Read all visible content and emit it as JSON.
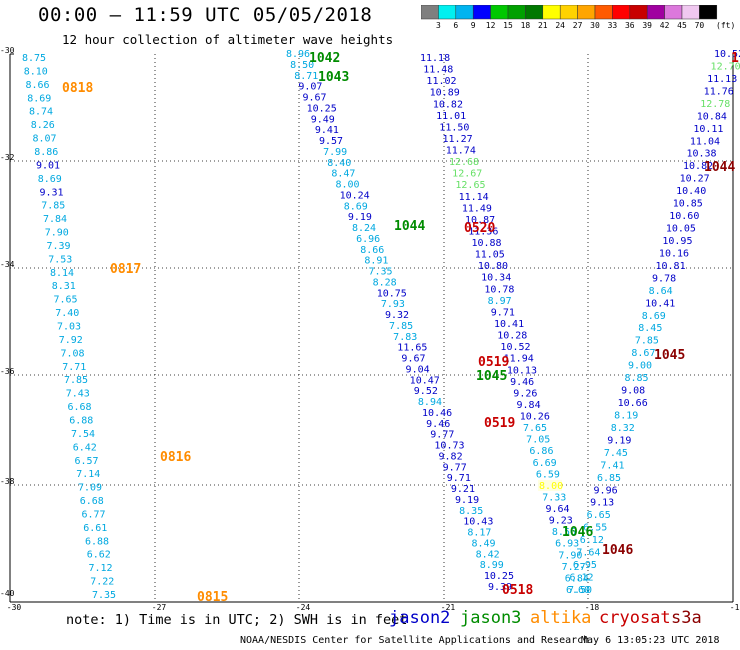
{
  "title": "00:00 – 11:59 UTC 05/05/2018",
  "subtitle": "12 hour collection of altimeter wave heights",
  "scale": {
    "unit": "(ft)",
    "bins": [
      {
        "label": "3",
        "color": "#7f7f7f"
      },
      {
        "label": "6",
        "color": "#00f0f0"
      },
      {
        "label": "9",
        "color": "#00b4f0"
      },
      {
        "label": "12",
        "color": "#0000ff"
      },
      {
        "label": "15",
        "color": "#00c800"
      },
      {
        "label": "18",
        "color": "#00a000"
      },
      {
        "label": "21",
        "color": "#007800"
      },
      {
        "label": "24",
        "color": "#ffff00"
      },
      {
        "label": "27",
        "color": "#ffd200"
      },
      {
        "label": "30",
        "color": "#ffa500"
      },
      {
        "label": "33",
        "color": "#ff5a00"
      },
      {
        "label": "36",
        "color": "#ff0000"
      },
      {
        "label": "39",
        "color": "#c80000"
      },
      {
        "label": "42",
        "color": "#a000a0"
      },
      {
        "label": "45",
        "color": "#dc78dc"
      },
      {
        "label": "70",
        "color": "#f0c8f0"
      },
      {
        "label": "",
        "color": "#000000"
      }
    ]
  },
  "map": {
    "lat_labels": [
      "-30",
      "-32",
      "-34",
      "-36",
      "-38",
      "-40"
    ],
    "lon_labels": [
      "-30",
      "-27",
      "-24",
      "-21",
      "-18",
      "-15"
    ]
  },
  "colors": {
    "jason2": "#0000c8",
    "jason3": "#008c00",
    "altika": "#ff8c00",
    "cryosat": "#c80000",
    "s3a": "#8b0000",
    "cyan": "#00a8e0",
    "lightgreen": "#66e066",
    "yellow": "#ffff00"
  },
  "tracks": [
    {
      "id": "altika",
      "color": "cyan",
      "points": [
        {
          "v": "8.75",
          "c": "cyan"
        },
        {
          "v": "8.10",
          "c": "cyan"
        },
        {
          "v": "8.66",
          "c": "cyan"
        },
        {
          "v": "8.69",
          "c": "cyan"
        },
        {
          "v": "8.74",
          "c": "cyan"
        },
        {
          "v": "8.26",
          "c": "cyan"
        },
        {
          "v": "8.07",
          "c": "cyan"
        },
        {
          "v": "8.86",
          "c": "cyan"
        },
        {
          "v": "9.01",
          "c": "jason2"
        },
        {
          "v": "8.69",
          "c": "cyan"
        },
        {
          "v": "9.31",
          "c": "jason2"
        },
        {
          "v": "7.85",
          "c": "cyan"
        },
        {
          "v": "7.84",
          "c": "cyan"
        },
        {
          "v": "7.90",
          "c": "cyan"
        },
        {
          "v": "7.39",
          "c": "cyan"
        },
        {
          "v": "7.53",
          "c": "cyan"
        },
        {
          "v": "8.14",
          "c": "cyan"
        },
        {
          "v": "8.31",
          "c": "cyan"
        },
        {
          "v": "7.65",
          "c": "cyan"
        },
        {
          "v": "7.40",
          "c": "cyan"
        },
        {
          "v": "7.03",
          "c": "cyan"
        },
        {
          "v": "7.92",
          "c": "cyan"
        },
        {
          "v": "7.08",
          "c": "cyan"
        },
        {
          "v": "7.71",
          "c": "cyan"
        },
        {
          "v": "7.85",
          "c": "cyan"
        },
        {
          "v": "7.43",
          "c": "cyan"
        },
        {
          "v": "6.68",
          "c": "cyan"
        },
        {
          "v": "6.88",
          "c": "cyan"
        },
        {
          "v": "7.54",
          "c": "cyan"
        },
        {
          "v": "6.42",
          "c": "cyan"
        },
        {
          "v": "6.57",
          "c": "cyan"
        },
        {
          "v": "7.14",
          "c": "cyan"
        },
        {
          "v": "7.09",
          "c": "cyan"
        },
        {
          "v": "6.68",
          "c": "cyan"
        },
        {
          "v": "6.77",
          "c": "cyan"
        },
        {
          "v": "6.61",
          "c": "cyan"
        },
        {
          "v": "6.88",
          "c": "cyan"
        },
        {
          "v": "6.62",
          "c": "cyan"
        },
        {
          "v": "7.12",
          "c": "cyan"
        },
        {
          "v": "7.22",
          "c": "cyan"
        },
        {
          "v": "7.35",
          "c": "cyan"
        }
      ]
    },
    {
      "id": "jason3-1042",
      "color": "cyan",
      "points": [
        {
          "v": "8.96",
          "c": "cyan"
        },
        {
          "v": "8.50",
          "c": "cyan"
        },
        {
          "v": "8.71",
          "c": "cyan"
        },
        {
          "v": "9.07",
          "c": "jason2"
        },
        {
          "v": "9.67",
          "c": "jason2"
        },
        {
          "v": "10.25",
          "c": "jason2"
        },
        {
          "v": "9.49",
          "c": "jason2"
        },
        {
          "v": "9.41",
          "c": "jason2"
        },
        {
          "v": "9.57",
          "c": "jason2"
        },
        {
          "v": "7.99",
          "c": "cyan"
        },
        {
          "v": "8.40",
          "c": "cyan"
        },
        {
          "v": "8.47",
          "c": "cyan"
        },
        {
          "v": "8.00",
          "c": "cyan"
        },
        {
          "v": "10.24",
          "c": "jason2"
        },
        {
          "v": "8.69",
          "c": "cyan"
        },
        {
          "v": "9.19",
          "c": "jason2"
        },
        {
          "v": "8.24",
          "c": "cyan"
        },
        {
          "v": "6.96",
          "c": "cyan"
        },
        {
          "v": "8.66",
          "c": "cyan"
        },
        {
          "v": "8.91",
          "c": "cyan"
        },
        {
          "v": "7.35",
          "c": "cyan"
        },
        {
          "v": "8.28",
          "c": "cyan"
        },
        {
          "v": "10.75",
          "c": "jason2"
        },
        {
          "v": "7.93",
          "c": "cyan"
        },
        {
          "v": "9.32",
          "c": "jason2"
        },
        {
          "v": "7.85",
          "c": "cyan"
        },
        {
          "v": "7.83",
          "c": "cyan"
        },
        {
          "v": "11.65",
          "c": "jason2"
        },
        {
          "v": "9.67",
          "c": "jason2"
        },
        {
          "v": "9.04",
          "c": "jason2"
        },
        {
          "v": "10.47",
          "c": "jason2"
        },
        {
          "v": "9.52",
          "c": "jason2"
        },
        {
          "v": "8.94",
          "c": "cyan"
        },
        {
          "v": "10.46",
          "c": "jason2"
        },
        {
          "v": "9.46",
          "c": "jason2"
        },
        {
          "v": "9.77",
          "c": "jason2"
        },
        {
          "v": "10.73",
          "c": "jason2"
        },
        {
          "v": "9.82",
          "c": "jason2"
        },
        {
          "v": "9.77",
          "c": "jason2"
        },
        {
          "v": "9.71",
          "c": "jason2"
        },
        {
          "v": "9.21",
          "c": "jason2"
        },
        {
          "v": "9.19",
          "c": "jason2"
        },
        {
          "v": "8.35",
          "c": "cyan"
        },
        {
          "v": "10.43",
          "c": "jason2"
        },
        {
          "v": "8.17",
          "c": "cyan"
        },
        {
          "v": "8.49",
          "c": "cyan"
        },
        {
          "v": "8.42",
          "c": "cyan"
        },
        {
          "v": "8.99",
          "c": "cyan"
        },
        {
          "v": "10.25",
          "c": "jason2"
        },
        {
          "v": "9.39",
          "c": "jason2"
        }
      ]
    },
    {
      "id": "jason2-0520",
      "color": "jason2",
      "points": [
        {
          "v": "11.18",
          "c": "jason2"
        },
        {
          "v": "11.48",
          "c": "jason2"
        },
        {
          "v": "11.02",
          "c": "jason2"
        },
        {
          "v": "10.89",
          "c": "jason2"
        },
        {
          "v": "10.82",
          "c": "jason2"
        },
        {
          "v": "11.01",
          "c": "jason2"
        },
        {
          "v": "11.50",
          "c": "jason2"
        },
        {
          "v": "11.27",
          "c": "jason2"
        },
        {
          "v": "11.74",
          "c": "jason2"
        },
        {
          "v": "12.68",
          "c": "lightgreen"
        },
        {
          "v": "12.67",
          "c": "lightgreen"
        },
        {
          "v": "12.65",
          "c": "lightgreen"
        },
        {
          "v": "11.14",
          "c": "jason2"
        },
        {
          "v": "11.49",
          "c": "jason2"
        },
        {
          "v": "10.87",
          "c": "jason2"
        },
        {
          "v": "11.36",
          "c": "jason2"
        },
        {
          "v": "10.88",
          "c": "jason2"
        },
        {
          "v": "11.05",
          "c": "jason2"
        },
        {
          "v": "10.80",
          "c": "jason2"
        },
        {
          "v": "10.34",
          "c": "jason2"
        },
        {
          "v": "10.78",
          "c": "jason2"
        },
        {
          "v": "8.97",
          "c": "cyan"
        },
        {
          "v": "9.71",
          "c": "jason2"
        },
        {
          "v": "10.41",
          "c": "jason2"
        },
        {
          "v": "10.28",
          "c": "jason2"
        },
        {
          "v": "10.52",
          "c": "jason2"
        },
        {
          "v": "11.94",
          "c": "jason2"
        },
        {
          "v": "10.13",
          "c": "jason2"
        },
        {
          "v": "9.46",
          "c": "jason2"
        },
        {
          "v": "9.26",
          "c": "jason2"
        },
        {
          "v": "9.84",
          "c": "jason2"
        },
        {
          "v": "10.26",
          "c": "jason2"
        },
        {
          "v": "7.65",
          "c": "cyan"
        },
        {
          "v": "7.05",
          "c": "cyan"
        },
        {
          "v": "6.86",
          "c": "cyan"
        },
        {
          "v": "6.69",
          "c": "cyan"
        },
        {
          "v": "6.59",
          "c": "cyan"
        },
        {
          "v": "8.00",
          "c": "yellow"
        },
        {
          "v": "7.33",
          "c": "cyan"
        },
        {
          "v": "9.64",
          "c": "jason2"
        },
        {
          "v": "9.23",
          "c": "jason2"
        },
        {
          "v": "8.56",
          "c": "cyan"
        },
        {
          "v": "6.93",
          "c": "cyan"
        },
        {
          "v": "7.90",
          "c": "cyan"
        },
        {
          "v": "7.27",
          "c": "cyan"
        },
        {
          "v": "6.84",
          "c": "cyan"
        },
        {
          "v": "7.50",
          "c": "cyan"
        }
      ]
    },
    {
      "id": "cryosat-1044",
      "color": "jason2",
      "points": [
        {
          "v": "10.52",
          "c": "jason2"
        },
        {
          "v": "12.70",
          "c": "lightgreen"
        },
        {
          "v": "11.13",
          "c": "jason2"
        },
        {
          "v": "11.76",
          "c": "jason2"
        },
        {
          "v": "12.78",
          "c": "lightgreen"
        },
        {
          "v": "10.84",
          "c": "jason2"
        },
        {
          "v": "10.11",
          "c": "jason2"
        },
        {
          "v": "11.04",
          "c": "jason2"
        },
        {
          "v": "10.38",
          "c": "jason2"
        },
        {
          "v": "10.82",
          "c": "jason2"
        },
        {
          "v": "10.27",
          "c": "jason2"
        },
        {
          "v": "10.40",
          "c": "jason2"
        },
        {
          "v": "10.85",
          "c": "jason2"
        },
        {
          "v": "10.60",
          "c": "jason2"
        },
        {
          "v": "10.05",
          "c": "jason2"
        },
        {
          "v": "10.95",
          "c": "jason2"
        },
        {
          "v": "10.16",
          "c": "jason2"
        },
        {
          "v": "10.81",
          "c": "jason2"
        },
        {
          "v": "9.78",
          "c": "jason2"
        },
        {
          "v": "8.64",
          "c": "cyan"
        },
        {
          "v": "10.41",
          "c": "jason2"
        },
        {
          "v": "8.69",
          "c": "cyan"
        },
        {
          "v": "8.45",
          "c": "cyan"
        },
        {
          "v": "7.85",
          "c": "cyan"
        },
        {
          "v": "8.67",
          "c": "cyan"
        },
        {
          "v": "9.00",
          "c": "cyan"
        },
        {
          "v": "8.85",
          "c": "cyan"
        },
        {
          "v": "9.08",
          "c": "jason2"
        },
        {
          "v": "10.66",
          "c": "jason2"
        },
        {
          "v": "8.19",
          "c": "cyan"
        },
        {
          "v": "8.32",
          "c": "cyan"
        },
        {
          "v": "9.19",
          "c": "jason2"
        },
        {
          "v": "7.45",
          "c": "cyan"
        },
        {
          "v": "7.41",
          "c": "cyan"
        },
        {
          "v": "6.85",
          "c": "cyan"
        },
        {
          "v": "9.96",
          "c": "jason2"
        },
        {
          "v": "9.13",
          "c": "jason2"
        },
        {
          "v": "6.65",
          "c": "cyan"
        },
        {
          "v": "6.55",
          "c": "cyan"
        },
        {
          "v": "6.12",
          "c": "cyan"
        },
        {
          "v": "7.64",
          "c": "cyan"
        },
        {
          "v": "6.95",
          "c": "cyan"
        },
        {
          "v": "6.12",
          "c": "cyan"
        },
        {
          "v": "6.60",
          "c": "cyan"
        }
      ]
    }
  ],
  "time_labels": [
    {
      "text": "0818",
      "c": "altika"
    },
    {
      "text": "0817",
      "c": "altika"
    },
    {
      "text": "0816",
      "c": "altika"
    },
    {
      "text": "0815",
      "c": "altika"
    },
    {
      "text": "1042",
      "c": "jason3"
    },
    {
      "text": "1043",
      "c": "jason3"
    },
    {
      "text": "1044",
      "c": "jason3"
    },
    {
      "text": "1045",
      "c": "jason3"
    },
    {
      "text": "1046",
      "c": "jason3"
    },
    {
      "text": "0520",
      "c": "cryosat"
    },
    {
      "text": "0519",
      "c": "cryosat"
    },
    {
      "text": "0519",
      "c": "cryosat"
    },
    {
      "text": "0518",
      "c": "cryosat"
    },
    {
      "text": "1",
      "c": "cryosat"
    },
    {
      "text": "1044",
      "c": "s3a"
    },
    {
      "text": "1045",
      "c": "s3a"
    },
    {
      "text": "1046",
      "c": "s3a"
    }
  ],
  "footer": {
    "note": "note: 1) Time is in UTC; 2) SWH is in feet",
    "legend": [
      {
        "name": "jason2",
        "c": "jason2"
      },
      {
        "name": "jason3",
        "c": "jason3"
      },
      {
        "name": "altika",
        "c": "altika"
      },
      {
        "name": "cryosat",
        "c": "cryosat"
      },
      {
        "name": "s3a",
        "c": "s3a"
      }
    ],
    "credit": "NOAA/NESDIS Center for Satellite Applications and Research",
    "timestamp": "May  6 13:05:23 UTC 2018"
  }
}
